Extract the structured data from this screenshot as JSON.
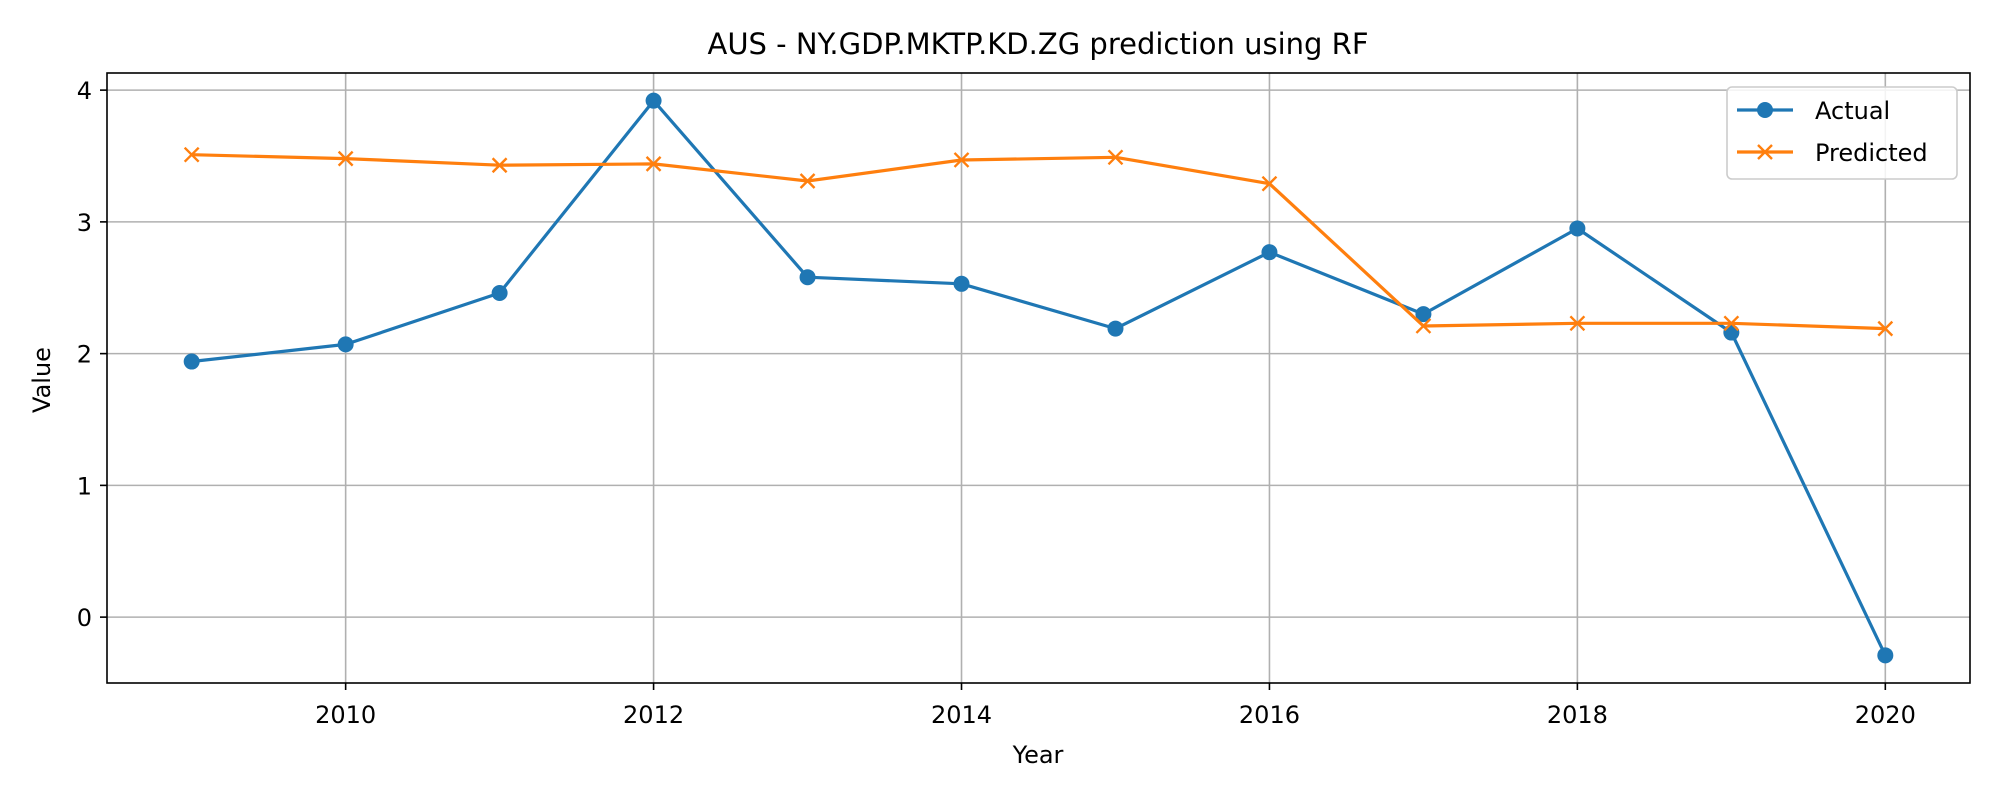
{
  "chart_data": {
    "type": "line",
    "title": "AUS - NY.GDP.MKTP.KD.ZG prediction using RF",
    "xlabel": "Year",
    "ylabel": "Value",
    "x": [
      2009,
      2010,
      2011,
      2012,
      2013,
      2014,
      2015,
      2016,
      2017,
      2018,
      2019,
      2020
    ],
    "xlim": [
      2008.45,
      2020.55
    ],
    "ylim": [
      -0.5,
      4.13
    ],
    "xticks": [
      2010,
      2012,
      2014,
      2016,
      2018,
      2020
    ],
    "yticks": [
      0,
      1,
      2,
      3,
      4
    ],
    "grid": true,
    "legend_position": "top-right",
    "series": [
      {
        "name": "Actual",
        "color": "#1f77b4",
        "marker": "circle",
        "values": [
          1.94,
          2.07,
          2.46,
          3.92,
          2.58,
          2.53,
          2.19,
          2.77,
          2.3,
          2.95,
          2.16,
          -0.29
        ]
      },
      {
        "name": "Predicted",
        "color": "#ff7f0e",
        "marker": "x",
        "values": [
          3.51,
          3.48,
          3.43,
          3.44,
          3.31,
          3.47,
          3.49,
          3.29,
          2.21,
          2.23,
          2.23,
          2.19
        ]
      }
    ]
  }
}
